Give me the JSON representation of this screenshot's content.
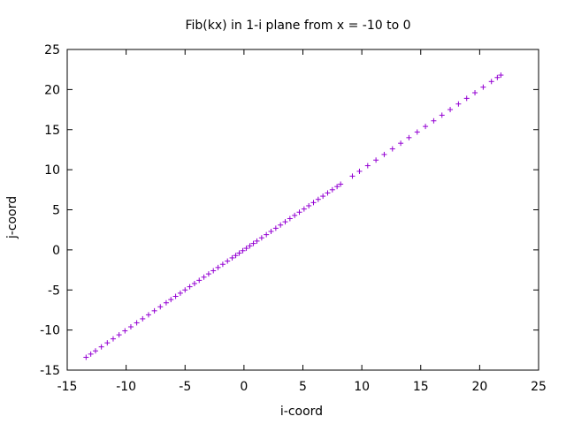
{
  "chart_data": {
    "type": "scatter",
    "title": "Fib(kx) in 1-i plane from x = -10 to 0",
    "xlabel": "i-coord",
    "ylabel": "j-coord",
    "xlim": [
      -15,
      25
    ],
    "ylim": [
      -15,
      25
    ],
    "xticks": [
      -15,
      -10,
      -5,
      0,
      5,
      10,
      15,
      20,
      25
    ],
    "yticks": [
      -15,
      -10,
      -5,
      0,
      5,
      10,
      15,
      20,
      25
    ],
    "xtick_labels": [
      "-15",
      "-10",
      "-5",
      "0",
      "5",
      "10",
      "15",
      "20",
      "25"
    ],
    "ytick_labels": [
      "-15",
      "-10",
      "-5",
      "0",
      "5",
      "10",
      "15",
      "20",
      "25"
    ],
    "grid": false,
    "marker": "+",
    "color": "#9400d3",
    "series": [
      {
        "values_note": "",
        "points": [
          [
            -13.4,
            -13.4
          ],
          [
            -13.0,
            -13.0
          ],
          [
            -12.6,
            -12.6
          ],
          [
            -12.1,
            -12.1
          ],
          [
            -11.6,
            -11.6
          ],
          [
            -11.1,
            -11.1
          ],
          [
            -10.6,
            -10.6
          ],
          [
            -10.1,
            -10.1
          ],
          [
            -9.6,
            -9.6
          ],
          [
            -9.1,
            -9.1
          ],
          [
            -8.6,
            -8.6
          ],
          [
            -8.1,
            -8.1
          ],
          [
            -7.6,
            -7.6
          ],
          [
            -7.1,
            -7.1
          ],
          [
            -6.6,
            -6.6
          ],
          [
            -6.2,
            -6.2
          ],
          [
            -5.8,
            -5.8
          ],
          [
            -5.4,
            -5.4
          ],
          [
            -5.0,
            -5.0
          ],
          [
            -4.6,
            -4.6
          ],
          [
            -4.2,
            -4.2
          ],
          [
            -3.8,
            -3.8
          ],
          [
            -3.4,
            -3.4
          ],
          [
            -3.0,
            -3.0
          ],
          [
            -2.6,
            -2.6
          ],
          [
            -2.2,
            -2.2
          ],
          [
            -1.8,
            -1.8
          ],
          [
            -1.4,
            -1.4
          ],
          [
            -1.0,
            -1.0
          ],
          [
            -0.7,
            -0.7
          ],
          [
            -0.4,
            -0.4
          ],
          [
            -0.1,
            -0.1
          ],
          [
            0.2,
            0.2
          ],
          [
            0.5,
            0.5
          ],
          [
            0.8,
            0.8
          ],
          [
            1.1,
            1.1
          ],
          [
            1.5,
            1.5
          ],
          [
            1.9,
            1.9
          ],
          [
            2.3,
            2.3
          ],
          [
            2.7,
            2.7
          ],
          [
            3.1,
            3.1
          ],
          [
            3.5,
            3.5
          ],
          [
            3.9,
            3.9
          ],
          [
            4.3,
            4.3
          ],
          [
            4.7,
            4.7
          ],
          [
            5.1,
            5.1
          ],
          [
            5.5,
            5.5
          ],
          [
            5.9,
            5.9
          ],
          [
            6.3,
            6.3
          ],
          [
            6.7,
            6.7
          ],
          [
            7.1,
            7.1
          ],
          [
            7.5,
            7.5
          ],
          [
            7.9,
            7.9
          ],
          [
            8.2,
            8.2
          ],
          [
            9.2,
            9.2
          ],
          [
            9.8,
            9.8
          ],
          [
            10.5,
            10.5
          ],
          [
            11.2,
            11.2
          ],
          [
            11.9,
            11.9
          ],
          [
            12.6,
            12.6
          ],
          [
            13.3,
            13.3
          ],
          [
            14.0,
            14.0
          ],
          [
            14.7,
            14.7
          ],
          [
            15.4,
            15.4
          ],
          [
            16.1,
            16.1
          ],
          [
            16.8,
            16.8
          ],
          [
            17.5,
            17.5
          ],
          [
            18.2,
            18.2
          ],
          [
            18.9,
            18.9
          ],
          [
            19.6,
            19.6
          ],
          [
            20.3,
            20.3
          ],
          [
            21.0,
            21.0
          ],
          [
            21.5,
            21.5
          ],
          [
            21.8,
            21.8
          ]
        ]
      }
    ]
  }
}
